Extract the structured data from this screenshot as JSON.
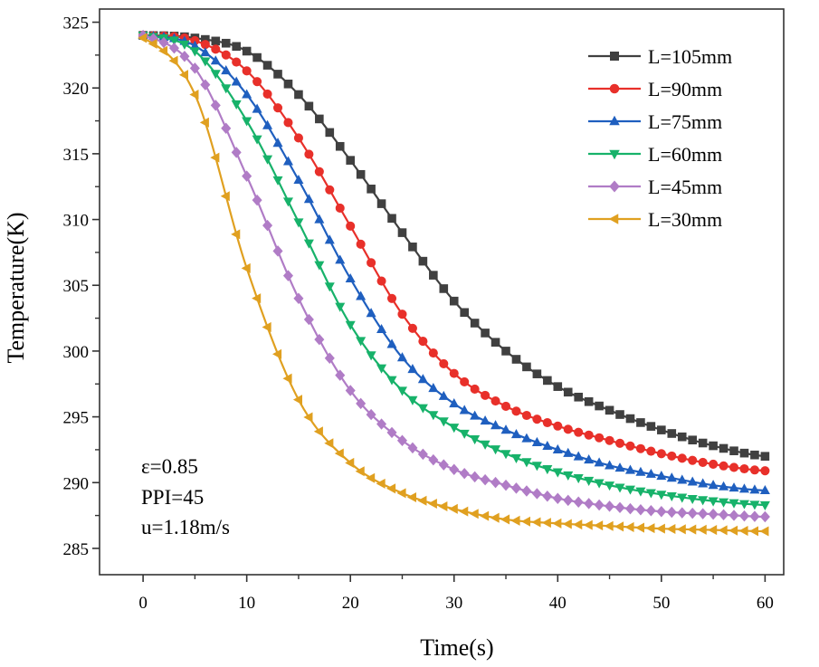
{
  "chart_data": {
    "type": "line",
    "xlabel": "Time(s)",
    "ylabel": "Temperature(K)",
    "xlim": [
      -4.2,
      61.8
    ],
    "ylim": [
      283,
      326
    ],
    "xticks": [
      0,
      10,
      20,
      30,
      40,
      50,
      60
    ],
    "xtick_labels": [
      "0",
      "10",
      "20",
      "30",
      "40",
      "50",
      "60"
    ],
    "yticks": [
      285,
      290,
      295,
      300,
      305,
      310,
      315,
      320,
      325
    ],
    "ytick_labels": [
      "285",
      "290",
      "295",
      "300",
      "305",
      "310",
      "315",
      "320",
      "325"
    ],
    "legend_position": "top-right",
    "annotations": [
      "ε=0.85",
      "PPI=45",
      "u=1.18m/s"
    ],
    "marker_interval": 1,
    "series": [
      {
        "name": "L=105mm",
        "color": "#404040",
        "marker": "square",
        "x": [
          0,
          5,
          10,
          15,
          20,
          25,
          30,
          35,
          40,
          45,
          50,
          55,
          60
        ],
        "values": [
          324,
          323.8,
          322.8,
          319.5,
          314.5,
          309,
          303.8,
          300,
          297.3,
          295.5,
          294,
          292.8,
          292
        ]
      },
      {
        "name": "L=90mm",
        "color": "#e8302a",
        "marker": "circle",
        "x": [
          0,
          5,
          10,
          15,
          20,
          25,
          30,
          35,
          40,
          45,
          50,
          55,
          60
        ],
        "values": [
          324,
          323.6,
          321.3,
          316.2,
          309.5,
          302.8,
          298.3,
          295.8,
          294.3,
          293.2,
          292.2,
          291.4,
          290.9
        ]
      },
      {
        "name": "L=75mm",
        "color": "#1f5fbf",
        "marker": "triangle-up",
        "x": [
          0,
          5,
          10,
          15,
          20,
          25,
          30,
          35,
          40,
          45,
          50,
          55,
          60
        ],
        "values": [
          324,
          323.2,
          319.5,
          313,
          305.5,
          299.5,
          296,
          294,
          292.5,
          291.3,
          290.5,
          289.8,
          289.4
        ]
      },
      {
        "name": "L=60mm",
        "color": "#17b26a",
        "marker": "triangle-down",
        "x": [
          0,
          5,
          10,
          15,
          20,
          25,
          30,
          35,
          40,
          45,
          50,
          55,
          60
        ],
        "values": [
          324,
          322.8,
          317.5,
          309.8,
          302,
          297,
          294.2,
          292.2,
          290.8,
          289.8,
          289.1,
          288.6,
          288.3
        ]
      },
      {
        "name": "L=45mm",
        "color": "#b07cc6",
        "marker": "diamond",
        "x": [
          0,
          5,
          10,
          15,
          20,
          25,
          30,
          35,
          40,
          45,
          50,
          55,
          60
        ],
        "values": [
          324,
          321.5,
          313.3,
          304,
          297,
          293.2,
          291,
          289.8,
          288.8,
          288.2,
          287.8,
          287.6,
          287.4
        ]
      },
      {
        "name": "L=30mm",
        "color": "#e0a020",
        "marker": "triangle-left",
        "x": [
          0,
          5,
          10,
          15,
          20,
          25,
          30,
          35,
          40,
          45,
          50,
          55,
          60
        ],
        "values": [
          323.8,
          319.5,
          306.3,
          296.3,
          291.5,
          289.2,
          288,
          287.2,
          286.9,
          286.7,
          286.5,
          286.4,
          286.3
        ]
      }
    ]
  }
}
